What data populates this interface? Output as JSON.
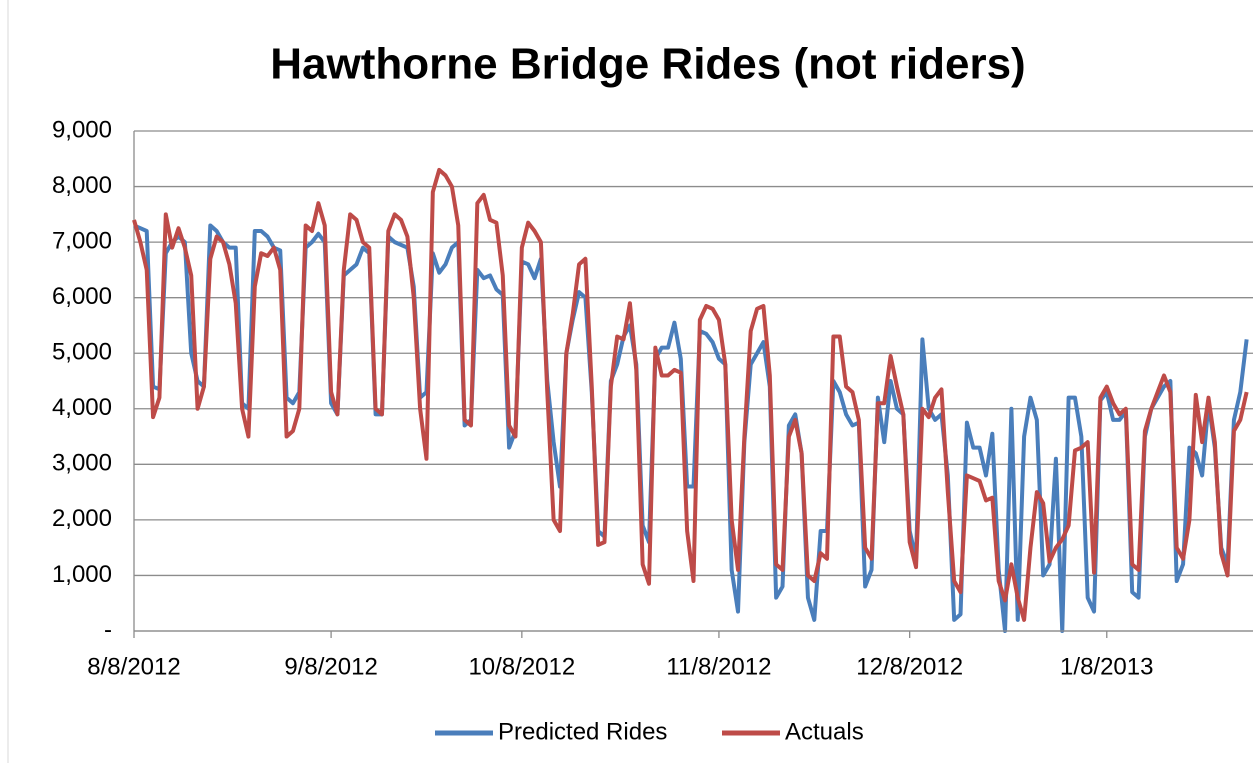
{
  "chart_data": {
    "type": "line",
    "title": "Hawthorne Bridge Rides (not riders)",
    "x": [
      "8/8/2012",
      "8/9/2012",
      "8/10/2012",
      "8/11/2012",
      "8/12/2012",
      "8/13/2012",
      "8/14/2012",
      "8/15/2012",
      "8/16/2012",
      "8/17/2012",
      "8/18/2012",
      "8/19/2012",
      "8/20/2012",
      "8/21/2012",
      "8/22/2012",
      "8/23/2012",
      "8/24/2012",
      "8/25/2012",
      "8/26/2012",
      "8/27/2012",
      "8/28/2012",
      "8/29/2012",
      "8/30/2012",
      "8/31/2012",
      "9/1/2012",
      "9/2/2012",
      "9/3/2012",
      "9/4/2012",
      "9/5/2012",
      "9/6/2012",
      "9/7/2012",
      "9/8/2012",
      "9/9/2012",
      "9/10/2012",
      "9/11/2012",
      "9/12/2012",
      "9/13/2012",
      "9/14/2012",
      "9/15/2012",
      "9/16/2012",
      "9/17/2012",
      "9/18/2012",
      "9/19/2012",
      "9/20/2012",
      "9/21/2012",
      "9/22/2012",
      "9/23/2012",
      "9/24/2012",
      "9/25/2012",
      "9/26/2012",
      "9/27/2012",
      "9/28/2012",
      "9/29/2012",
      "9/30/2012",
      "10/1/2012",
      "10/2/2012",
      "10/3/2012",
      "10/4/2012",
      "10/5/2012",
      "10/6/2012",
      "10/7/2012",
      "10/8/2012",
      "10/9/2012",
      "10/10/2012",
      "10/11/2012",
      "10/12/2012",
      "10/13/2012",
      "10/14/2012",
      "10/15/2012",
      "10/16/2012",
      "10/17/2012",
      "10/18/2012",
      "10/19/2012",
      "10/20/2012",
      "10/21/2012",
      "10/22/2012",
      "10/23/2012",
      "10/24/2012",
      "10/25/2012",
      "10/26/2012",
      "10/27/2012",
      "10/28/2012",
      "10/29/2012",
      "10/30/2012",
      "10/31/2012",
      "11/1/2012",
      "11/2/2012",
      "11/3/2012",
      "11/4/2012",
      "11/5/2012",
      "11/6/2012",
      "11/7/2012",
      "11/8/2012",
      "11/9/2012",
      "11/10/2012",
      "11/11/2012",
      "11/12/2012",
      "11/13/2012",
      "11/14/2012",
      "11/15/2012",
      "11/16/2012",
      "11/17/2012",
      "11/18/2012",
      "11/19/2012",
      "11/20/2012",
      "11/21/2012",
      "11/22/2012",
      "11/23/2012",
      "11/24/2012",
      "11/25/2012",
      "11/26/2012",
      "11/27/2012",
      "11/28/2012",
      "11/29/2012",
      "11/30/2012",
      "12/1/2012",
      "12/2/2012",
      "12/3/2012",
      "12/4/2012",
      "12/5/2012",
      "12/6/2012",
      "12/7/2012",
      "12/8/2012",
      "12/9/2012",
      "12/10/2012",
      "12/11/2012",
      "12/12/2012",
      "12/13/2012",
      "12/14/2012",
      "12/15/2012",
      "12/16/2012",
      "12/17/2012",
      "12/18/2012",
      "12/19/2012",
      "12/20/2012",
      "12/21/2012",
      "12/22/2012",
      "12/23/2012",
      "12/24/2012",
      "12/25/2012",
      "12/26/2012",
      "12/27/2012",
      "12/28/2012",
      "12/29/2012",
      "12/30/2012",
      "12/31/2012",
      "1/1/2013",
      "1/2/2013",
      "1/3/2013",
      "1/4/2013",
      "1/5/2013",
      "1/6/2013",
      "1/7/2013",
      "1/8/2013",
      "1/9/2013",
      "1/10/2013",
      "1/11/2013",
      "1/12/2013",
      "1/13/2013",
      "1/14/2013",
      "1/15/2013",
      "1/16/2013",
      "1/17/2013",
      "1/18/2013",
      "1/19/2013",
      "1/20/2013",
      "1/21/2013",
      "1/22/2013",
      "1/23/2013",
      "1/24/2013",
      "1/25/2013",
      "1/26/2013",
      "1/27/2013",
      "1/28/2013",
      "1/29/2013",
      "1/30/2013"
    ],
    "series": [
      {
        "name": "Predicted Rides",
        "color": "#4a7ebb",
        "values": [
          7300,
          7250,
          7200,
          4400,
          4350,
          6800,
          7000,
          7100,
          7000,
          5000,
          4500,
          4400,
          7300,
          7200,
          7000,
          6900,
          6900,
          4100,
          4000,
          7200,
          7200,
          7100,
          6900,
          6850,
          4200,
          4100,
          4300,
          6900,
          7000,
          7150,
          7000,
          4100,
          3900,
          6400,
          6500,
          6600,
          6900,
          6800,
          3900,
          3900,
          7100,
          7000,
          6950,
          6900,
          6200,
          4200,
          4300,
          6800,
          6450,
          6600,
          6900,
          7000,
          3700,
          3800,
          6500,
          6350,
          6400,
          6150,
          6050,
          3300,
          3600,
          6650,
          6600,
          6350,
          6700,
          4500,
          3400,
          2600,
          5000,
          5600,
          6100,
          6000,
          4300,
          1800,
          1700,
          4500,
          4800,
          5300,
          5500,
          4800,
          1900,
          1600,
          4900,
          5100,
          5100,
          5550,
          4900,
          2600,
          2600,
          5400,
          5350,
          5200,
          4900,
          4800,
          1100,
          350,
          3400,
          4800,
          5000,
          5200,
          4400,
          600,
          800,
          3700,
          3900,
          3200,
          600,
          200,
          1800,
          1800,
          4500,
          4300,
          3900,
          3700,
          3750,
          800,
          1100,
          4200,
          3400,
          4500,
          4000,
          3900,
          1800,
          1300,
          5250,
          4000,
          3800,
          3900,
          2800,
          200,
          300,
          3750,
          3300,
          3300,
          2800,
          3550,
          1100,
          0,
          4000,
          200,
          3500,
          4200,
          3800,
          1000,
          1200,
          3100,
          0,
          4200,
          4200,
          3500,
          600,
          350,
          4150,
          4300,
          3800,
          3800,
          3950,
          700,
          600,
          3500,
          4000,
          4200,
          4400,
          4500,
          900,
          1200,
          3300,
          3200,
          2800,
          4100,
          3300,
          1500,
          1200,
          3800,
          4300,
          5250
        ]
      },
      {
        "name": "Actuals",
        "color": "#be4b48",
        "values": [
          7400,
          7000,
          6500,
          3850,
          4200,
          7500,
          6900,
          7250,
          6900,
          6400,
          4000,
          4400,
          6700,
          7100,
          7000,
          6600,
          5900,
          4000,
          3500,
          6200,
          6800,
          6750,
          6900,
          6500,
          3500,
          3600,
          4000,
          7300,
          7200,
          7700,
          7300,
          4300,
          3900,
          6500,
          7500,
          7400,
          7000,
          6900,
          4000,
          3900,
          7200,
          7500,
          7400,
          7100,
          6000,
          4000,
          3100,
          7900,
          8300,
          8200,
          8000,
          7300,
          3800,
          3700,
          7700,
          7850,
          7400,
          7350,
          6400,
          3700,
          3500,
          6900,
          7350,
          7200,
          7000,
          4300,
          2000,
          1800,
          5000,
          5700,
          6600,
          6700,
          4400,
          1550,
          1600,
          4400,
          5300,
          5250,
          5900,
          4700,
          1200,
          850,
          5100,
          4600,
          4600,
          4700,
          4650,
          1800,
          900,
          5600,
          5850,
          5800,
          5600,
          4800,
          2000,
          1100,
          3500,
          5400,
          5800,
          5850,
          4600,
          1200,
          1100,
          3500,
          3800,
          3200,
          1000,
          900,
          1400,
          1300,
          5300,
          5300,
          4400,
          4300,
          3800,
          1500,
          1300,
          4100,
          4100,
          4950,
          4400,
          3900,
          1600,
          1150,
          4000,
          3850,
          4200,
          4350,
          2500,
          900,
          700,
          2800,
          2750,
          2700,
          2350,
          2400,
          900,
          550,
          1200,
          600,
          200,
          1500,
          2500,
          2300,
          1250,
          1500,
          1650,
          1900,
          3250,
          3300,
          3400,
          1050,
          4200,
          4400,
          4100,
          3900,
          4000,
          1200,
          1100,
          3600,
          4000,
          4300,
          4600,
          4300,
          1500,
          1300,
          2000,
          4250,
          3400,
          4200,
          3400,
          1400,
          1000,
          3600,
          3800,
          4300
        ]
      }
    ],
    "xlim": [
      "8/8/2012",
      "1/31/2013"
    ],
    "xticks": [
      "8/8/2012",
      "9/8/2012",
      "10/8/2012",
      "11/8/2012",
      "12/8/2012",
      "1/8/2013"
    ],
    "ylim": [
      0,
      9000
    ],
    "yticks": [
      {
        "value": 0,
        "label": "-"
      },
      {
        "value": 1000,
        "label": "1,000"
      },
      {
        "value": 2000,
        "label": "2,000"
      },
      {
        "value": 3000,
        "label": "3,000"
      },
      {
        "value": 4000,
        "label": "4,000"
      },
      {
        "value": 5000,
        "label": "5,000"
      },
      {
        "value": 6000,
        "label": "6,000"
      },
      {
        "value": 7000,
        "label": "7,000"
      },
      {
        "value": 8000,
        "label": "8,000"
      },
      {
        "value": 9000,
        "label": "9,000"
      }
    ],
    "grid": true,
    "legend": "bottom"
  }
}
